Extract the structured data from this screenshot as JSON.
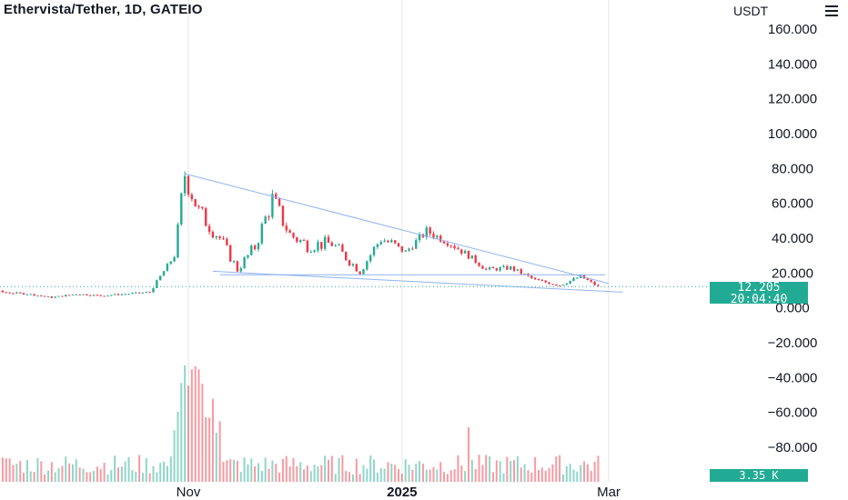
{
  "header": {
    "title": "Ethervista/Tether, 1D, GATEIO",
    "currency": "USDT",
    "menu_icon": "hamburger-menu-icon"
  },
  "price_tag": {
    "price": "12.205",
    "countdown": "20:04:40"
  },
  "volume_tag": {
    "value": "3.35 K"
  },
  "colors": {
    "up": "#22ab94",
    "down": "#f23645",
    "trendline": "#90b4f0",
    "price_line": "#22ab94",
    "grid": "#e6e6e6"
  },
  "chart_data": {
    "type": "candlestick",
    "title": "Ethervista/Tether, 1D, GATEIO",
    "y_tick_labels": [
      "160.000",
      "140.000",
      "120.000",
      "100.000",
      "80.000",
      "60.000",
      "40.000",
      "20.000",
      "0.000",
      "−20.000",
      "−40.000",
      "−60.000",
      "−80.000"
    ],
    "y_ticks": [
      160,
      140,
      120,
      100,
      80,
      60,
      40,
      20,
      0,
      -20,
      -40,
      -60,
      -80
    ],
    "ylim": [
      -98,
      166
    ],
    "x_tick_labels": [
      "Nov",
      "2025",
      "Mar"
    ],
    "x_tick_dates": [
      "2024-11-01",
      "2025-01-01",
      "2025-03-01"
    ],
    "date_range": [
      "2024-08-19",
      "2025-03-01"
    ],
    "vertical_gridlines": [
      "2024-11-01",
      "2025-01-01",
      "2025-03-01"
    ],
    "last_price": 12.205,
    "last_volume": "3.35 K",
    "ohlc_anchors": [
      {
        "date": "2024-08-19",
        "close": 13
      },
      {
        "date": "2024-08-26",
        "close": 14
      },
      {
        "date": "2024-09-02",
        "close": 12
      },
      {
        "date": "2024-09-09",
        "close": 9
      },
      {
        "date": "2024-09-16",
        "close": 8
      },
      {
        "date": "2024-09-23",
        "close": 6
      },
      {
        "date": "2024-09-30",
        "close": 8
      },
      {
        "date": "2024-10-07",
        "close": 7
      },
      {
        "date": "2024-10-14",
        "close": 8
      },
      {
        "date": "2024-10-21",
        "close": 9
      },
      {
        "date": "2024-10-28",
        "close": 30
      },
      {
        "date": "2024-10-31",
        "close": 77
      },
      {
        "date": "2024-11-04",
        "close": 55
      },
      {
        "date": "2024-11-10",
        "close": 40
      },
      {
        "date": "2024-11-15",
        "close": 22
      },
      {
        "date": "2024-11-20",
        "close": 35
      },
      {
        "date": "2024-11-25",
        "close": 62
      },
      {
        "date": "2024-11-30",
        "close": 42
      },
      {
        "date": "2024-12-05",
        "close": 36
      },
      {
        "date": "2024-12-12",
        "close": 37
      },
      {
        "date": "2024-12-20",
        "close": 21
      },
      {
        "date": "2024-12-26",
        "close": 40
      },
      {
        "date": "2025-01-02",
        "close": 32
      },
      {
        "date": "2025-01-08",
        "close": 44
      },
      {
        "date": "2025-01-14",
        "close": 38
      },
      {
        "date": "2025-01-20",
        "close": 30
      },
      {
        "date": "2025-01-25",
        "close": 22
      },
      {
        "date": "2025-02-01",
        "close": 23
      },
      {
        "date": "2025-02-08",
        "close": 16
      },
      {
        "date": "2025-02-15",
        "close": 13
      },
      {
        "date": "2025-02-21",
        "close": 18
      },
      {
        "date": "2025-02-26",
        "close": 12.205
      }
    ],
    "volume_anchors": [
      {
        "date": "2024-10-29",
        "value": "high"
      },
      {
        "date": "2024-10-31",
        "value": "peak"
      },
      {
        "date": "2025-01-20",
        "value": "elevated"
      }
    ],
    "trendlines": [
      {
        "from": {
          "date": "2024-10-31",
          "price": 77
        },
        "to": {
          "date": "2025-03-01",
          "price": 14
        }
      },
      {
        "from": {
          "date": "2024-11-08",
          "price": 21
        },
        "to": {
          "date": "2025-03-05",
          "price": 9
        }
      },
      {
        "from": {
          "date": "2024-11-10",
          "price": 19
        },
        "to": {
          "date": "2025-02-28",
          "price": 19
        }
      }
    ],
    "grid": true,
    "legend": "none"
  }
}
